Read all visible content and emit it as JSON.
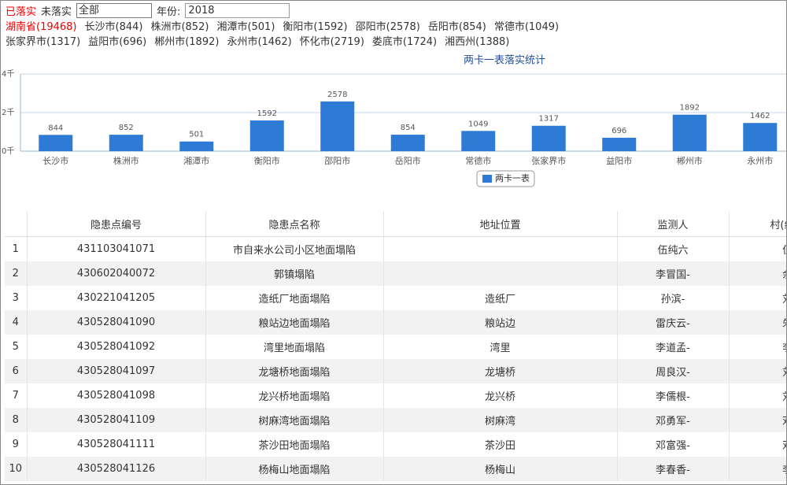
{
  "toolbar": {
    "implemented": "已落实",
    "unimplemented": "未落实",
    "select": "全部",
    "year_label": "年份:",
    "year": "2018"
  },
  "regions": [
    [
      "湖南省(19468)",
      "长沙市(844)",
      "株洲市(852)",
      "湘潭市(501)",
      "衡阳市(1592)",
      "邵阳市(2578)",
      "岳阳市(854)",
      "常德市(1049)"
    ],
    [
      "张家界市(1317)",
      "益阳市(696)",
      "郴州市(1892)",
      "永州市(1462)",
      "怀化市(2719)",
      "娄底市(1724)",
      "湘西州(1388)"
    ]
  ],
  "chart_data": {
    "type": "bar",
    "title": "两卡一表落实统计",
    "categories": [
      "长沙市",
      "株洲市",
      "湘潭市",
      "衡阳市",
      "邵阳市",
      "岳阳市",
      "常德市",
      "张家界市",
      "益阳市",
      "郴州市",
      "永州市"
    ],
    "series": [
      {
        "name": "两卡一表",
        "color": "#2e7bd6",
        "values": [
          844,
          852,
          501,
          1592,
          2578,
          854,
          1049,
          1317,
          696,
          1892,
          1462
        ]
      }
    ],
    "ylim": [
      0,
      4000
    ],
    "yticks": [
      {
        "value": 0,
        "label": "0千"
      },
      {
        "value": 2000,
        "label": "2千"
      },
      {
        "value": 4000,
        "label": "4千"
      }
    ],
    "grid": true,
    "legend": "bottom"
  },
  "table": {
    "columns": [
      "隐患点编号",
      "隐患点名称",
      "地址位置",
      "监测人",
      "村(组)负责人"
    ],
    "rows": [
      [
        1,
        "431103041071",
        "市自来水公司小区地面塌陷",
        null,
        "伍纯六",
        "伍纯六-"
      ],
      [
        2,
        "430602040072",
        "郭镇塌陷",
        null,
        "李冒国-",
        "余长斌-"
      ],
      [
        3,
        "430221041205",
        "造纸厂地面塌陷",
        "造纸厂",
        "孙滨-",
        "刘旭花-"
      ],
      [
        4,
        "430528041090",
        "粮站边地面塌陷",
        "粮站边",
        "雷庆云-",
        "朱志良-"
      ],
      [
        5,
        "430528041092",
        "湾里地面塌陷",
        "湾里",
        "李道孟-",
        "李道孟-"
      ],
      [
        6,
        "430528041097",
        "龙塘桥地面塌陷",
        "龙塘桥",
        "周良汉-",
        "刘先桂-"
      ],
      [
        7,
        "430528041098",
        "龙兴桥地面塌陷",
        "龙兴桥",
        "李儒根-",
        "刘绍举-"
      ],
      [
        8,
        "430528041109",
        "树麻湾地面塌陷",
        "树麻湾",
        "邓勇军-",
        "邓勇军-"
      ],
      [
        9,
        "430528041111",
        "茶沙田地面塌陷",
        "茶沙田",
        "邓富强-",
        "邓富强-"
      ],
      [
        10,
        "430528041126",
        "杨梅山地面塌陷",
        "杨梅山",
        "李春香-",
        "李春香-"
      ]
    ]
  }
}
